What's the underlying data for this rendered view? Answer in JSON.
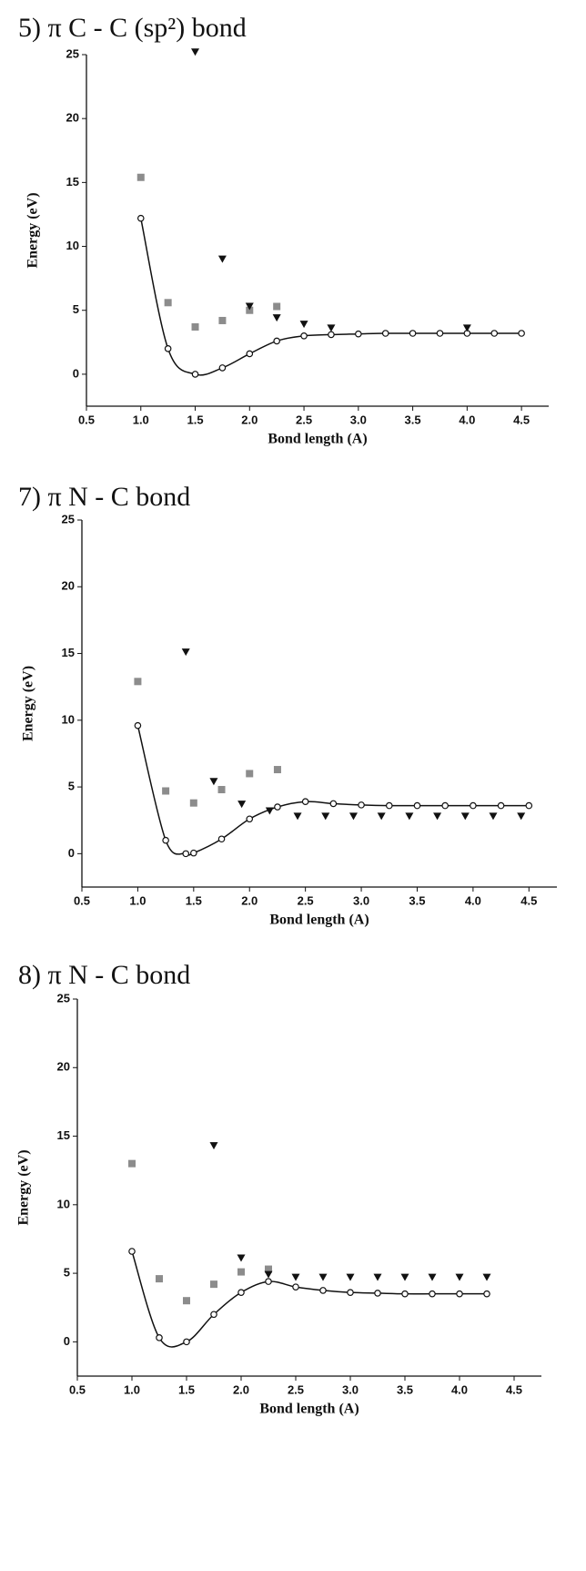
{
  "chart_data": [
    {
      "type": "scatter",
      "title": "5) π C - C (sp²)  bond",
      "x_label": "Bond length (A)",
      "y_label": "Energy (eV)",
      "xlim": [
        0.5,
        4.75
      ],
      "ylim": [
        -2.5,
        25
      ],
      "xticks": [
        0.5,
        {
          "value": 1,
          "label": "1.0"
        },
        1.5,
        {
          "value": 2,
          "label": "2.0"
        },
        2.5,
        {
          "value": 3,
          "label": "3.0"
        },
        3.5,
        {
          "value": 4,
          "label": "4.0"
        },
        4.5
      ],
      "yticks": [
        0,
        5,
        10,
        15,
        20,
        25
      ],
      "series": [
        {
          "color": "#111111",
          "marker": "circle",
          "line": true,
          "x": [
            1.0,
            1.25,
            1.5,
            1.75,
            2.0,
            2.25,
            2.5,
            2.75,
            3.0,
            3.25,
            3.5,
            3.75,
            4.0,
            4.25,
            4.5
          ],
          "values": [
            12.2,
            2.0,
            0.0,
            0.5,
            1.6,
            2.6,
            3.0,
            3.1,
            3.15,
            3.2,
            3.2,
            3.2,
            3.2,
            3.2,
            3.2
          ]
        },
        {
          "color": "#8c8c8c",
          "marker": "square",
          "line": false,
          "x": [
            1.0,
            1.25,
            1.5,
            1.75,
            2.0,
            2.25
          ],
          "values": [
            15.4,
            5.6,
            3.7,
            4.2,
            5.0,
            5.3
          ]
        },
        {
          "color": "#111111",
          "marker": "triangle",
          "line": false,
          "x": [
            1.5,
            1.75,
            2.0,
            2.25,
            2.5,
            2.75,
            4.0
          ],
          "values": [
            25.2,
            9.0,
            5.3,
            4.4,
            3.9,
            3.6,
            3.6
          ]
        }
      ]
    },
    {
      "type": "scatter",
      "title": "7) π  N - C bond",
      "x_label": "Bond length (A)",
      "y_label": "Energy (eV)",
      "xlim": [
        0.5,
        4.75
      ],
      "ylim": [
        -2.5,
        25
      ],
      "xticks": [
        0.5,
        {
          "value": 1,
          "label": "1.0"
        },
        1.5,
        {
          "value": 2,
          "label": "2.0"
        },
        2.5,
        {
          "value": 3,
          "label": "3.0"
        },
        3.5,
        {
          "value": 4,
          "label": "4.0"
        },
        4.5
      ],
      "yticks": [
        0,
        5,
        10,
        15,
        20,
        25
      ],
      "series": [
        {
          "color": "#111111",
          "marker": "circle",
          "line": true,
          "x": [
            1.0,
            1.25,
            1.43,
            1.5,
            1.75,
            2.0,
            2.25,
            2.5,
            2.75,
            3.0,
            3.25,
            3.5,
            3.75,
            4.0,
            4.25,
            4.5
          ],
          "values": [
            9.6,
            1.0,
            0.0,
            0.05,
            1.1,
            2.6,
            3.5,
            3.9,
            3.75,
            3.65,
            3.6,
            3.6,
            3.6,
            3.6,
            3.6,
            3.6
          ]
        },
        {
          "color": "#8c8c8c",
          "marker": "square",
          "line": false,
          "x": [
            1.0,
            1.25,
            1.5,
            1.75,
            2.0,
            2.25
          ],
          "values": [
            12.9,
            4.7,
            3.8,
            4.8,
            6.0,
            6.3
          ]
        },
        {
          "color": "#111111",
          "marker": "triangle",
          "line": false,
          "x": [
            1.43,
            1.68,
            1.93,
            2.18,
            2.43,
            2.68,
            2.93,
            3.18,
            3.43,
            3.68,
            3.93,
            4.18,
            4.43
          ],
          "values": [
            15.1,
            5.4,
            3.7,
            3.2,
            2.8,
            2.8,
            2.8,
            2.8,
            2.8,
            2.8,
            2.8,
            2.8,
            2.8
          ]
        }
      ]
    },
    {
      "type": "scatter",
      "title": "8) π  N - C bond",
      "x_label": "Bond length (A)",
      "y_label": "Energy (eV)",
      "xlim": [
        0.5,
        4.75
      ],
      "ylim": [
        -2.5,
        25
      ],
      "xticks": [
        0.5,
        {
          "value": 1,
          "label": "1.0"
        },
        1.5,
        {
          "value": 2,
          "label": "2.0"
        },
        2.5,
        {
          "value": 3,
          "label": "3.0"
        },
        3.5,
        {
          "value": 4,
          "label": "4.0"
        },
        4.5
      ],
      "yticks": [
        0,
        5,
        10,
        15,
        20,
        25
      ],
      "series": [
        {
          "color": "#111111",
          "marker": "circle",
          "line": true,
          "x": [
            1.0,
            1.25,
            1.5,
            1.75,
            2.0,
            2.25,
            2.5,
            2.75,
            3.0,
            3.25,
            3.5,
            3.75,
            4.0,
            4.25
          ],
          "values": [
            6.6,
            0.3,
            0.0,
            2.0,
            3.6,
            4.4,
            4.0,
            3.75,
            3.6,
            3.55,
            3.5,
            3.5,
            3.5,
            3.5
          ]
        },
        {
          "color": "#8c8c8c",
          "marker": "square",
          "line": false,
          "x": [
            1.0,
            1.25,
            1.5,
            1.75,
            2.0,
            2.25
          ],
          "values": [
            13.0,
            4.6,
            3.0,
            4.2,
            5.1,
            5.3
          ]
        },
        {
          "color": "#111111",
          "marker": "triangle",
          "line": false,
          "x": [
            1.75,
            2.0,
            2.25,
            2.5,
            2.75,
            3.0,
            3.25,
            3.5,
            3.75,
            4.0,
            4.25
          ],
          "values": [
            14.3,
            6.1,
            4.9,
            4.7,
            4.7,
            4.7,
            4.7,
            4.7,
            4.7,
            4.7,
            4.7
          ]
        }
      ]
    }
  ]
}
